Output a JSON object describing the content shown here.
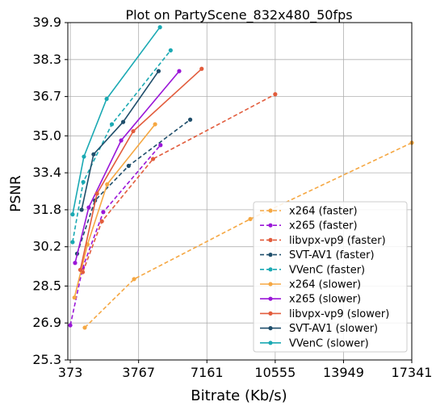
{
  "chart_data": {
    "type": "line",
    "title": "Plot on PartyScene_832x480_50fps",
    "xlabel": "Bitrate (Kb/s)",
    "ylabel": "PSNR",
    "xlim": [
      250,
      17341
    ],
    "ylim": [
      25.3,
      39.9
    ],
    "xticks": [
      373,
      3767,
      7161,
      10555,
      13949,
      17341
    ],
    "yticks": [
      25.3,
      26.9,
      28.5,
      30.2,
      31.8,
      33.4,
      35.0,
      36.7,
      38.3,
      39.9
    ],
    "xtick_labels": [
      "373",
      "3767",
      "7161",
      "10555",
      "13949",
      "17341"
    ],
    "ytick_labels": [
      "25.3",
      "26.9",
      "28.5",
      "30.2",
      "31.8",
      "33.4",
      "35.0",
      "36.7",
      "38.3",
      "39.9"
    ],
    "grid": true,
    "legend_position": "lower-right",
    "series": [
      {
        "name": "x264 (faster)",
        "color": "#f5a742",
        "dashed": true,
        "x": [
          1092,
          3542,
          9318,
          17341
        ],
        "y": [
          26.7,
          28.8,
          31.4,
          34.7
        ]
      },
      {
        "name": "x265 (faster)",
        "color": "#9a16d8",
        "dashed": true,
        "x": [
          373,
          992,
          2011,
          4856
        ],
        "y": [
          26.8,
          29.3,
          31.7,
          34.6
        ]
      },
      {
        "name": "libvpx-vp9 (faster)",
        "color": "#e25c3c",
        "dashed": true,
        "x": [
          992,
          1942,
          4486,
          10555
        ],
        "y": [
          29.1,
          31.3,
          34.0,
          36.8
        ]
      },
      {
        "name": "SVT-AV1 (faster)",
        "color": "#1f4e6b",
        "dashed": true,
        "x": [
          711,
          1600,
          3272,
          6331
        ],
        "y": [
          29.9,
          32.2,
          33.7,
          35.7
        ]
      },
      {
        "name": "VVenC (faster)",
        "color": "#1aa9b3",
        "dashed": true,
        "x": [
          488,
          1017,
          2438,
          5359
        ],
        "y": [
          30.4,
          33.0,
          35.5,
          38.7
        ]
      },
      {
        "name": "x264 (slower)",
        "color": "#f5a742",
        "dashed": false,
        "x": [
          580,
          1230,
          2205,
          4587
        ],
        "y": [
          28.0,
          30.3,
          32.9,
          35.5
        ]
      },
      {
        "name": "x265 (slower)",
        "color": "#9a16d8",
        "dashed": false,
        "x": [
          610,
          1290,
          2900,
          5785
        ],
        "y": [
          29.5,
          31.9,
          34.8,
          37.8
        ]
      },
      {
        "name": "libvpx-vp9 (slower)",
        "color": "#e25c3c",
        "dashed": false,
        "x": [
          870,
          1700,
          3500,
          6900
        ],
        "y": [
          29.2,
          32.5,
          35.2,
          37.9
        ]
      },
      {
        "name": "SVT-AV1 (slower)",
        "color": "#1f4e6b",
        "dashed": false,
        "x": [
          936,
          1530,
          3000,
          4760
        ],
        "y": [
          31.8,
          34.2,
          35.6,
          37.8
        ]
      },
      {
        "name": "VVenC (slower)",
        "color": "#1aa9b3",
        "dashed": false,
        "x": [
          488,
          1050,
          2180,
          4829
        ],
        "y": [
          31.6,
          34.1,
          36.6,
          39.7
        ]
      }
    ]
  }
}
